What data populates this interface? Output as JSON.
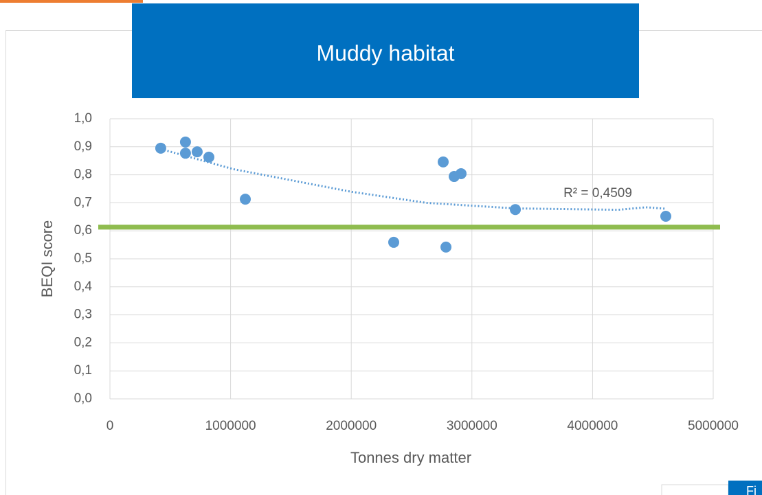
{
  "chart_data": {
    "type": "scatter",
    "title": "Muddy habitat",
    "x_label": "Tonnes dry matter",
    "y_label": "BEQI score",
    "x": [
      421000,
      626000,
      626000,
      723000,
      820000,
      1122000,
      2352000,
      2762000,
      2785000,
      2853000,
      2910000,
      3360000,
      4607000
    ],
    "values": [
      0.895,
      0.917,
      0.877,
      0.882,
      0.863,
      0.713,
      0.559,
      0.846,
      0.542,
      0.794,
      0.804,
      0.676,
      0.652
    ],
    "color": "#5b9bd5",
    "trendline": {
      "x": [
        421000,
        1025000,
        1993000,
        2620000,
        3360000,
        4214000,
        4442000,
        4607000
      ],
      "values": [
        0.892,
        0.82,
        0.74,
        0.7,
        0.68,
        0.675,
        0.684,
        0.679
      ],
      "color": "#5b9bd5"
    },
    "annotation": "R² = 0,4509",
    "threshold": {
      "value": 0.613,
      "color": "#8fbc4f"
    },
    "xlim": [
      0,
      5000000
    ],
    "xticks": [
      0,
      1000000,
      2000000,
      3000000,
      4000000,
      5000000
    ],
    "ylim": [
      0,
      1
    ],
    "yticks": [
      {
        "value": 0,
        "label": "0,0"
      },
      {
        "value": 0.1,
        "label": "0,1"
      },
      {
        "value": 0.2,
        "label": "0,2"
      },
      {
        "value": 0.3,
        "label": "0,3"
      },
      {
        "value": 0.4,
        "label": "0,4"
      },
      {
        "value": 0.5,
        "label": "0,5"
      },
      {
        "value": 0.6,
        "label": "0,6"
      },
      {
        "value": 0.7,
        "label": "0,7"
      },
      {
        "value": 0.8,
        "label": "0,8"
      },
      {
        "value": 0.9,
        "label": "0,9"
      },
      {
        "value": 1,
        "label": "1,0"
      }
    ],
    "grid": true,
    "corner_button": "Fi"
  }
}
